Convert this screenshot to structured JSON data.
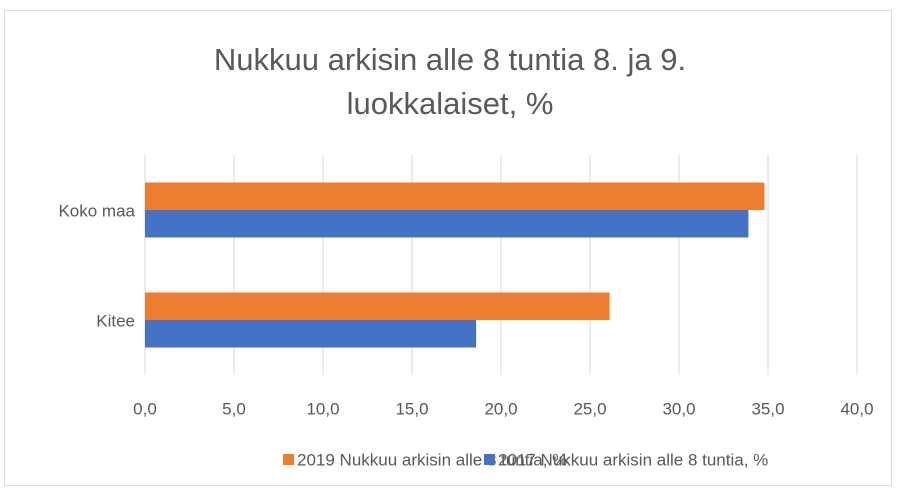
{
  "chart_data": {
    "type": "barh",
    "title": "Nukkuu arkisin alle 8 tuntia 8. ja 9. luokkalaiset, %",
    "categories": [
      "Koko maa",
      "Kitee"
    ],
    "series": [
      {
        "name": "2019 Nukkuu arkisin alle 8 tuntia, %",
        "color": "#ed7d31",
        "values": [
          34.8,
          26.1
        ]
      },
      {
        "name": "2017 Nukkuu arkisin alle 8 tuntia, %",
        "color": "#4472c4",
        "values": [
          33.9,
          18.6
        ]
      }
    ],
    "xlim": [
      0,
      40
    ],
    "xticks": [
      {
        "value": 0,
        "label": "0,0"
      },
      {
        "value": 5,
        "label": "5,0"
      },
      {
        "value": 10,
        "label": "10,0"
      },
      {
        "value": 15,
        "label": "15,0"
      },
      {
        "value": 20,
        "label": "20,0"
      },
      {
        "value": 25,
        "label": "25,0"
      },
      {
        "value": 30,
        "label": "30,0"
      },
      {
        "value": 35,
        "label": "35,0"
      },
      {
        "value": 40,
        "label": "40,0"
      }
    ],
    "grid": true,
    "legend": "bottom"
  }
}
